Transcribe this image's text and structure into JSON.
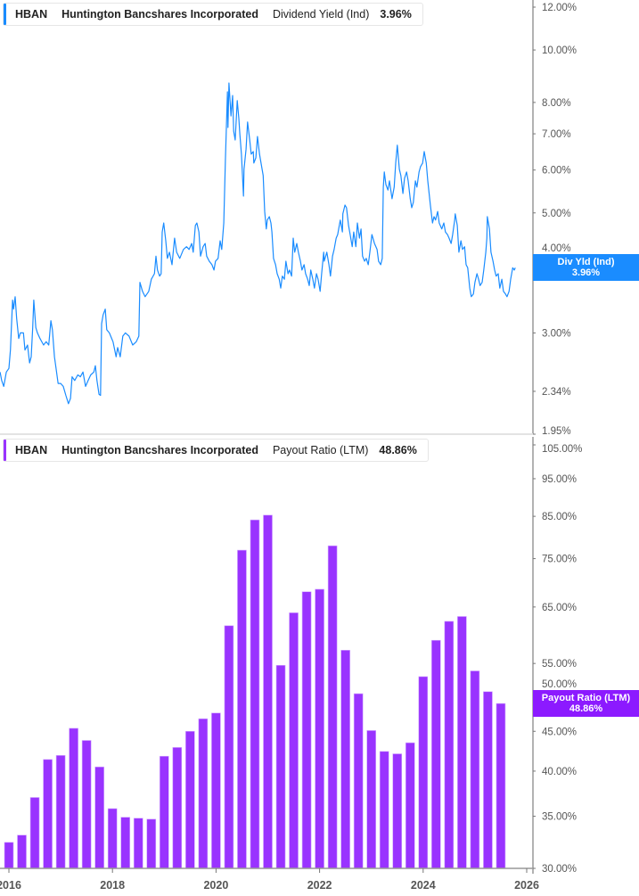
{
  "colors": {
    "yield": "#1a8cff",
    "payout": "#9933ff",
    "axis": "#999999"
  },
  "top_legend": {
    "ticker": "HBAN",
    "company": "Huntington Bancshares Incorporated",
    "metric": "Dividend Yield (Ind)",
    "value": "3.96%"
  },
  "bottom_legend": {
    "ticker": "HBAN",
    "company": "Huntington Bancshares Incorporated",
    "metric": "Payout Ratio (LTM)",
    "value": "48.86%"
  },
  "top_callout": {
    "label": "Div Yld (Ind)",
    "value": "3.96%"
  },
  "bottom_callout": {
    "label": "Payout Ratio (LTM)",
    "value": "48.86%"
  },
  "chart_data": [
    {
      "type": "line",
      "series_label": "Dividend Yield (Ind)",
      "yscale": "log",
      "ylim": [
        1.95,
        12
      ],
      "xlim": [
        2015.83,
        2026.1
      ],
      "yticks": [
        12,
        10,
        8,
        7,
        6,
        5,
        4,
        3,
        2.34,
        1.95
      ],
      "ytick_labels": [
        "12.00%",
        "10.00%",
        "8.00%",
        "7.00%",
        "6.00%",
        "5.00%",
        "4.00%",
        "3.00%",
        "2.34%",
        "1.95%"
      ],
      "grid": false,
      "points": [
        [
          2015.83,
          2.54
        ],
        [
          2015.86,
          2.45
        ],
        [
          2015.9,
          2.39
        ],
        [
          2015.95,
          2.54
        ],
        [
          2016.0,
          2.58
        ],
        [
          2016.03,
          2.79
        ],
        [
          2016.07,
          3.45
        ],
        [
          2016.09,
          3.32
        ],
        [
          2016.12,
          3.5
        ],
        [
          2016.15,
          3.19
        ],
        [
          2016.19,
          2.93
        ],
        [
          2016.22,
          3.0
        ],
        [
          2016.28,
          3.0
        ],
        [
          2016.31,
          2.79
        ],
        [
          2016.36,
          2.85
        ],
        [
          2016.4,
          2.64
        ],
        [
          2016.43,
          2.71
        ],
        [
          2016.46,
          3.07
        ],
        [
          2016.48,
          3.45
        ],
        [
          2016.52,
          3.07
        ],
        [
          2016.55,
          3.0
        ],
        [
          2016.6,
          2.93
        ],
        [
          2016.67,
          2.85
        ],
        [
          2016.72,
          2.89
        ],
        [
          2016.77,
          2.85
        ],
        [
          2016.81,
          3.16
        ],
        [
          2016.84,
          3.04
        ],
        [
          2016.88,
          2.71
        ],
        [
          2016.91,
          2.58
        ],
        [
          2016.95,
          2.42
        ],
        [
          2017.0,
          2.42
        ],
        [
          2017.05,
          2.39
        ],
        [
          2017.1,
          2.3
        ],
        [
          2017.15,
          2.22
        ],
        [
          2017.19,
          2.27
        ],
        [
          2017.22,
          2.49
        ],
        [
          2017.27,
          2.45
        ],
        [
          2017.33,
          2.51
        ],
        [
          2017.38,
          2.49
        ],
        [
          2017.43,
          2.54
        ],
        [
          2017.48,
          2.39
        ],
        [
          2017.53,
          2.45
        ],
        [
          2017.58,
          2.51
        ],
        [
          2017.64,
          2.54
        ],
        [
          2017.67,
          2.61
        ],
        [
          2017.7,
          2.45
        ],
        [
          2017.74,
          2.31
        ],
        [
          2017.77,
          2.3
        ],
        [
          2017.79,
          3.12
        ],
        [
          2017.82,
          3.24
        ],
        [
          2017.86,
          3.32
        ],
        [
          2017.89,
          3.04
        ],
        [
          2017.94,
          3.0
        ],
        [
          2018.01,
          2.89
        ],
        [
          2018.07,
          2.71
        ],
        [
          2018.1,
          2.82
        ],
        [
          2018.15,
          2.71
        ],
        [
          2018.2,
          2.96
        ],
        [
          2018.25,
          3.0
        ],
        [
          2018.32,
          2.96
        ],
        [
          2018.39,
          2.85
        ],
        [
          2018.46,
          2.89
        ],
        [
          2018.51,
          2.96
        ],
        [
          2018.53,
          3.72
        ],
        [
          2018.58,
          3.58
        ],
        [
          2018.63,
          3.5
        ],
        [
          2018.7,
          3.58
        ],
        [
          2018.75,
          3.77
        ],
        [
          2018.81,
          3.86
        ],
        [
          2018.84,
          4.16
        ],
        [
          2018.87,
          3.92
        ],
        [
          2018.91,
          3.82
        ],
        [
          2018.94,
          3.86
        ],
        [
          2018.96,
          4.61
        ],
        [
          2018.99,
          4.79
        ],
        [
          2019.03,
          4.44
        ],
        [
          2019.06,
          4.12
        ],
        [
          2019.1,
          4.23
        ],
        [
          2019.15,
          4.01
        ],
        [
          2019.2,
          4.49
        ],
        [
          2019.24,
          4.23
        ],
        [
          2019.3,
          4.12
        ],
        [
          2019.37,
          4.28
        ],
        [
          2019.43,
          4.33
        ],
        [
          2019.48,
          4.28
        ],
        [
          2019.53,
          4.39
        ],
        [
          2019.56,
          4.23
        ],
        [
          2019.6,
          4.74
        ],
        [
          2019.63,
          4.79
        ],
        [
          2019.67,
          4.61
        ],
        [
          2019.7,
          4.16
        ],
        [
          2019.75,
          4.33
        ],
        [
          2019.79,
          4.39
        ],
        [
          2019.82,
          4.16
        ],
        [
          2019.87,
          4.07
        ],
        [
          2019.92,
          4.01
        ],
        [
          2019.96,
          3.92
        ],
        [
          2019.99,
          4.07
        ],
        [
          2020.04,
          4.12
        ],
        [
          2020.08,
          4.44
        ],
        [
          2020.11,
          4.28
        ],
        [
          2020.15,
          4.79
        ],
        [
          2020.18,
          6.25
        ],
        [
          2020.22,
          8.37
        ],
        [
          2020.23,
          7.19
        ],
        [
          2020.25,
          8.69
        ],
        [
          2020.29,
          7.55
        ],
        [
          2020.32,
          8.24
        ],
        [
          2020.34,
          7.08
        ],
        [
          2020.37,
          6.82
        ],
        [
          2020.41,
          8.06
        ],
        [
          2020.44,
          7.47
        ],
        [
          2020.46,
          7.0
        ],
        [
          2020.49,
          6.42
        ],
        [
          2020.53,
          5.37
        ],
        [
          2020.54,
          6.02
        ],
        [
          2020.58,
          6.56
        ],
        [
          2020.61,
          7.36
        ],
        [
          2020.65,
          6.82
        ],
        [
          2020.68,
          6.42
        ],
        [
          2020.72,
          6.49
        ],
        [
          2020.73,
          6.18
        ],
        [
          2020.77,
          6.32
        ],
        [
          2020.8,
          6.92
        ],
        [
          2020.84,
          6.42
        ],
        [
          2020.87,
          6.18
        ],
        [
          2020.91,
          5.86
        ],
        [
          2020.94,
          5.03
        ],
        [
          2020.97,
          4.67
        ],
        [
          2020.99,
          4.85
        ],
        [
          2021.03,
          4.92
        ],
        [
          2021.06,
          4.79
        ],
        [
          2021.08,
          4.61
        ],
        [
          2021.11,
          4.12
        ],
        [
          2021.15,
          4.01
        ],
        [
          2021.18,
          3.86
        ],
        [
          2021.22,
          3.77
        ],
        [
          2021.25,
          3.63
        ],
        [
          2021.28,
          3.82
        ],
        [
          2021.32,
          3.77
        ],
        [
          2021.35,
          4.07
        ],
        [
          2021.39,
          3.86
        ],
        [
          2021.42,
          3.92
        ],
        [
          2021.46,
          3.82
        ],
        [
          2021.49,
          4.49
        ],
        [
          2021.52,
          4.23
        ],
        [
          2021.56,
          4.39
        ],
        [
          2021.59,
          4.23
        ],
        [
          2021.63,
          4.07
        ],
        [
          2021.66,
          3.92
        ],
        [
          2021.7,
          4.01
        ],
        [
          2021.73,
          3.86
        ],
        [
          2021.77,
          3.77
        ],
        [
          2021.8,
          3.67
        ],
        [
          2021.83,
          3.92
        ],
        [
          2021.87,
          3.77
        ],
        [
          2021.9,
          3.63
        ],
        [
          2021.94,
          3.86
        ],
        [
          2021.97,
          3.77
        ],
        [
          2022.01,
          3.58
        ],
        [
          2022.04,
          3.86
        ],
        [
          2022.08,
          4.23
        ],
        [
          2022.09,
          4.07
        ],
        [
          2022.14,
          4.23
        ],
        [
          2022.18,
          4.01
        ],
        [
          2022.21,
          3.82
        ],
        [
          2022.25,
          4.16
        ],
        [
          2022.28,
          4.28
        ],
        [
          2022.32,
          4.49
        ],
        [
          2022.35,
          4.56
        ],
        [
          2022.4,
          4.85
        ],
        [
          2022.44,
          4.61
        ],
        [
          2022.45,
          4.98
        ],
        [
          2022.49,
          5.17
        ],
        [
          2022.52,
          5.11
        ],
        [
          2022.56,
          4.74
        ],
        [
          2022.59,
          4.56
        ],
        [
          2022.63,
          4.33
        ],
        [
          2022.66,
          4.61
        ],
        [
          2022.7,
          4.33
        ],
        [
          2022.73,
          4.79
        ],
        [
          2022.77,
          4.49
        ],
        [
          2022.8,
          4.67
        ],
        [
          2022.83,
          4.16
        ],
        [
          2022.87,
          4.07
        ],
        [
          2022.9,
          4.12
        ],
        [
          2022.94,
          4.01
        ],
        [
          2022.97,
          4.23
        ],
        [
          2023.01,
          4.56
        ],
        [
          2023.06,
          4.39
        ],
        [
          2023.11,
          4.28
        ],
        [
          2023.14,
          4.07
        ],
        [
          2023.18,
          4.01
        ],
        [
          2023.21,
          4.12
        ],
        [
          2023.23,
          5.58
        ],
        [
          2023.25,
          5.95
        ],
        [
          2023.28,
          5.64
        ],
        [
          2023.32,
          5.51
        ],
        [
          2023.35,
          5.73
        ],
        [
          2023.4,
          5.31
        ],
        [
          2023.44,
          5.58
        ],
        [
          2023.47,
          6.18
        ],
        [
          2023.5,
          6.67
        ],
        [
          2023.54,
          6.02
        ],
        [
          2023.57,
          5.86
        ],
        [
          2023.61,
          5.43
        ],
        [
          2023.64,
          5.79
        ],
        [
          2023.68,
          5.95
        ],
        [
          2023.71,
          5.73
        ],
        [
          2023.75,
          5.31
        ],
        [
          2023.78,
          5.11
        ],
        [
          2023.81,
          5.23
        ],
        [
          2023.85,
          5.73
        ],
        [
          2023.88,
          5.58
        ],
        [
          2023.92,
          5.95
        ],
        [
          2023.95,
          6.09
        ],
        [
          2023.99,
          6.18
        ],
        [
          2024.02,
          6.49
        ],
        [
          2024.06,
          6.18
        ],
        [
          2024.09,
          5.73
        ],
        [
          2024.14,
          5.17
        ],
        [
          2024.18,
          4.79
        ],
        [
          2024.21,
          4.92
        ],
        [
          2024.24,
          4.85
        ],
        [
          2024.28,
          5.03
        ],
        [
          2024.31,
          4.79
        ],
        [
          2024.36,
          4.67
        ],
        [
          2024.4,
          4.79
        ],
        [
          2024.43,
          4.61
        ],
        [
          2024.47,
          4.56
        ],
        [
          2024.5,
          4.49
        ],
        [
          2024.54,
          4.39
        ],
        [
          2024.57,
          4.56
        ],
        [
          2024.61,
          4.85
        ],
        [
          2024.62,
          4.98
        ],
        [
          2024.66,
          4.74
        ],
        [
          2024.69,
          4.23
        ],
        [
          2024.73,
          4.44
        ],
        [
          2024.76,
          4.28
        ],
        [
          2024.8,
          4.33
        ],
        [
          2024.83,
          4.01
        ],
        [
          2024.86,
          3.96
        ],
        [
          2024.9,
          3.63
        ],
        [
          2024.93,
          3.5
        ],
        [
          2024.97,
          3.54
        ],
        [
          2025.0,
          3.72
        ],
        [
          2025.04,
          3.86
        ],
        [
          2025.07,
          3.77
        ],
        [
          2025.1,
          3.67
        ],
        [
          2025.14,
          3.72
        ],
        [
          2025.17,
          3.92
        ],
        [
          2025.21,
          4.23
        ],
        [
          2025.23,
          4.49
        ],
        [
          2025.24,
          4.92
        ],
        [
          2025.28,
          4.67
        ],
        [
          2025.31,
          4.23
        ],
        [
          2025.35,
          4.07
        ],
        [
          2025.38,
          3.92
        ],
        [
          2025.41,
          3.82
        ],
        [
          2025.45,
          3.86
        ],
        [
          2025.48,
          3.63
        ],
        [
          2025.52,
          3.77
        ],
        [
          2025.55,
          3.58
        ],
        [
          2025.59,
          3.54
        ],
        [
          2025.62,
          3.5
        ],
        [
          2025.66,
          3.58
        ],
        [
          2025.69,
          3.77
        ],
        [
          2025.73,
          3.96
        ],
        [
          2025.76,
          3.92
        ],
        [
          2025.78,
          3.96
        ]
      ]
    },
    {
      "type": "bar",
      "series_label": "Payout Ratio (LTM)",
      "yscale": "log",
      "ylim": [
        30,
        105
      ],
      "xlim": [
        2015.83,
        2026.1
      ],
      "yticks": [
        105,
        95,
        85,
        75,
        65,
        55,
        50,
        45,
        40,
        35,
        30
      ],
      "ytick_labels": [
        "105.00%",
        "95.00%",
        "85.00%",
        "75.00%",
        "65.00%",
        "55.00%",
        "50.00%",
        "45.00%",
        "40.00%",
        "35.00%",
        "30.00%"
      ],
      "xticks": [
        2016,
        2018,
        2020,
        2022,
        2024,
        2026
      ],
      "xtick_labels": [
        "2016",
        "2018",
        "2020",
        "2022",
        "2024",
        "2026"
      ],
      "grid": false,
      "x": [
        2016.0,
        2016.25,
        2016.5,
        2016.75,
        2017.0,
        2017.25,
        2017.5,
        2017.75,
        2018.0,
        2018.25,
        2018.5,
        2018.75,
        2019.0,
        2019.25,
        2019.5,
        2019.75,
        2020.0,
        2020.25,
        2020.5,
        2020.75,
        2021.0,
        2021.25,
        2021.5,
        2021.75,
        2022.0,
        2022.25,
        2022.5,
        2022.75,
        2023.0,
        2023.25,
        2023.5,
        2023.75,
        2024.0,
        2024.25,
        2024.5,
        2024.75,
        2025.0,
        2025.25,
        2025.5
      ],
      "values": [
        32.4,
        33.1,
        37.0,
        41.4,
        41.9,
        45.4,
        43.8,
        40.5,
        35.8,
        34.9,
        34.8,
        34.7,
        41.8,
        42.9,
        45.0,
        46.7,
        47.5,
        61.5,
        76.9,
        84.1,
        85.3,
        54.7,
        63.9,
        68.0,
        68.5,
        77.9,
        57.2,
        50.3,
        45.1,
        42.4,
        42.1,
        43.5,
        52.9,
        58.9,
        62.3,
        63.2,
        53.8,
        50.6,
        48.86
      ]
    }
  ]
}
